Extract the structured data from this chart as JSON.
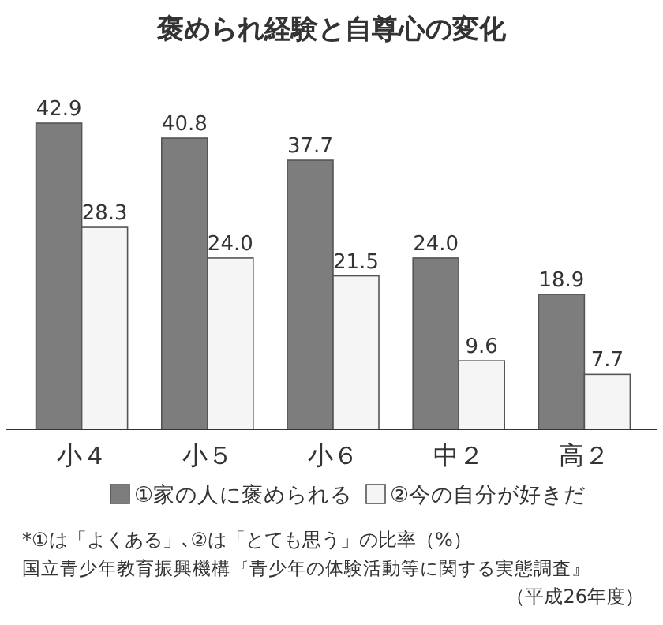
{
  "chart_data": {
    "type": "bar",
    "title": "褒められ経験と自尊心の変化",
    "categories": [
      "小４",
      "小５",
      "小６",
      "中２",
      "高２"
    ],
    "series": [
      {
        "name": "①家の人に褒められる",
        "color": "#7d7d7d",
        "values": [
          42.9,
          40.8,
          37.7,
          24.0,
          18.9
        ],
        "value_labels": [
          "42.9",
          "40.8",
          "37.7",
          "24.0",
          "18.9"
        ]
      },
      {
        "name": "②今の自分が好きだ",
        "color": "#f5f5f5",
        "values": [
          28.3,
          24.0,
          21.5,
          9.6,
          7.7
        ],
        "value_labels": [
          "28.3",
          "24.0",
          "21.5",
          "9.6",
          "7.7"
        ]
      }
    ],
    "legend": "bottom",
    "annotations": [
      "*①は「よくある」､②は「とても思う」の比率（%）",
      "国立青少年教育振興機構『青少年の体験活動等に関する実態調査』",
      "（平成26年度）"
    ]
  }
}
